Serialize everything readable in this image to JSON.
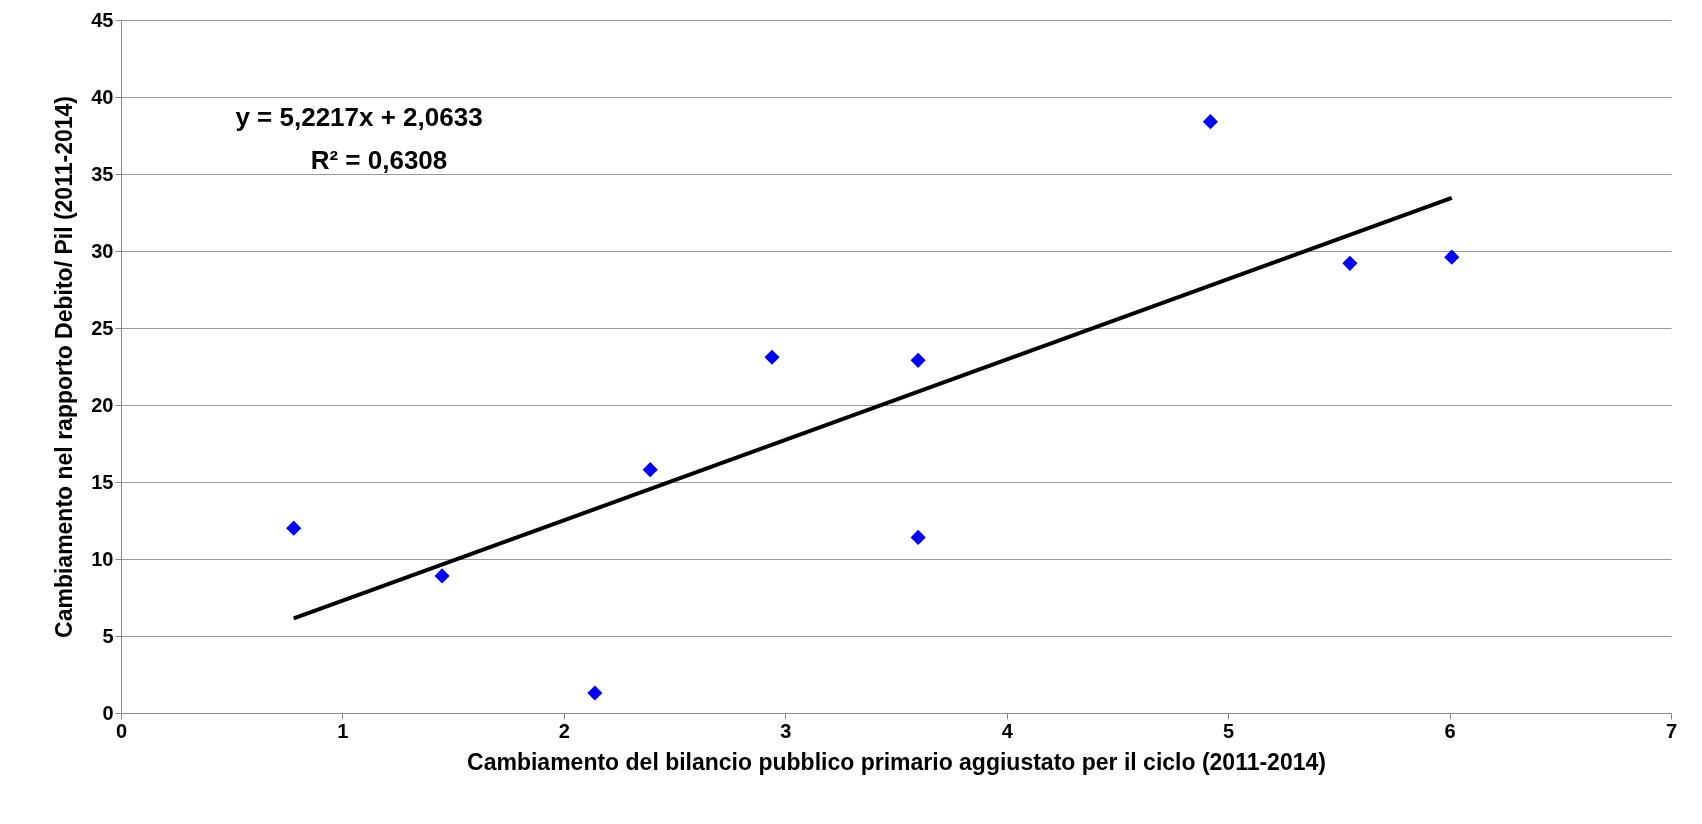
{
  "chart_data": {
    "type": "scatter",
    "xlabel": "Cambiamento del bilancio pubblico primario aggiustato per il ciclo (2011-2014)",
    "ylabel": "Cambiamento nel rapporto Debito/ Pil (2011-2014)",
    "xlim": [
      0,
      7
    ],
    "xticks": [
      0,
      1,
      2,
      3,
      4,
      5,
      6,
      7
    ],
    "ylim": [
      0,
      45
    ],
    "yticks": [
      0,
      5,
      10,
      15,
      20,
      25,
      30,
      35,
      40,
      45
    ],
    "grid": "y",
    "annotations": [
      "y = 5,2217x + 2,0633",
      "R² = 0,6308"
    ],
    "series": [
      {
        "type": "scatter",
        "color": "#0000ff",
        "marker": "diamond",
        "x": [
          0.78,
          1.45,
          2.14,
          2.39,
          2.94,
          3.6,
          3.6,
          4.92,
          5.55,
          6.01
        ],
        "values": [
          12.0,
          8.9,
          1.3,
          15.8,
          23.1,
          22.9,
          11.4,
          38.4,
          29.2,
          29.6
        ]
      },
      {
        "type": "line",
        "color": "#000000",
        "line_style": "solid",
        "x": [
          0.78,
          6.01
        ],
        "values": [
          6.14,
          33.45
        ]
      }
    ]
  }
}
